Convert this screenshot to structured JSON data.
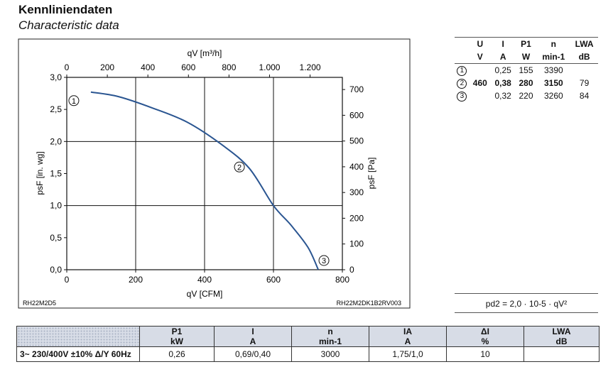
{
  "header": {
    "title": "Kennliniendaten",
    "subtitle": "Characteristic data"
  },
  "chart_data": {
    "type": "line",
    "top_axis": {
      "label": "qV [m³/h]",
      "ticks": [
        "0",
        "200",
        "400",
        "600",
        "800",
        "1.000",
        "1.200"
      ]
    },
    "bottom_axis": {
      "label": "qV [CFM]",
      "ticks": [
        "0",
        "200",
        "400",
        "600",
        "800"
      ],
      "range": [
        0,
        800
      ]
    },
    "left_axis": {
      "label": "psF [in. wg]",
      "ticks": [
        "0,0",
        "0,5",
        "1,0",
        "1,5",
        "2,0",
        "2,5",
        "3,0"
      ],
      "range": [
        0,
        3
      ]
    },
    "right_axis": {
      "label": "psF [Pa]",
      "ticks": [
        "0",
        "100",
        "200",
        "300",
        "400",
        "500",
        "600",
        "700"
      ]
    },
    "series": [
      {
        "x": [
          70,
          150,
          250,
          350,
          450,
          530,
          600,
          650,
          700,
          730
        ],
        "y": [
          2.77,
          2.7,
          2.52,
          2.3,
          1.95,
          1.58,
          1.0,
          0.7,
          0.35,
          0.0
        ]
      }
    ],
    "markers": [
      {
        "label": "1",
        "x": 70,
        "y": 2.77
      },
      {
        "label": "2",
        "x": 530,
        "y": 1.58
      },
      {
        "label": "3",
        "x": 730,
        "y": 0.0
      }
    ],
    "grid": true,
    "color": "#2a5591",
    "left_code": "RH22M2D5",
    "right_code": "RH22M2DK1B2RV003"
  },
  "point_table": {
    "headers": [
      "U",
      "I",
      "P1",
      "n",
      "LWA"
    ],
    "units": [
      "V",
      "A",
      "W",
      "min-1",
      "dB"
    ],
    "rows": [
      {
        "point": "1",
        "values": [
          "",
          "0,25",
          "155",
          "3390",
          ""
        ]
      },
      {
        "point": "2",
        "values": [
          "460",
          "0,38",
          "280",
          "3150",
          "79"
        ]
      },
      {
        "point": "3",
        "values": [
          "",
          "0,32",
          "220",
          "3260",
          "84"
        ]
      }
    ]
  },
  "formula": "pd2 = 2,0 · 10-5 · qV²",
  "bottom_table": {
    "headers": [
      "",
      "P1",
      "I",
      "n",
      "IA",
      "ΔI",
      "LWA"
    ],
    "units": [
      "",
      "kW",
      "A",
      "min-1",
      "A",
      "%",
      "dB"
    ],
    "row": [
      "3~ 230/400V ±10% Δ/Y 60Hz",
      "0,26",
      "0,69/0,40",
      "3000",
      "1,75/1,0",
      "10",
      ""
    ]
  }
}
